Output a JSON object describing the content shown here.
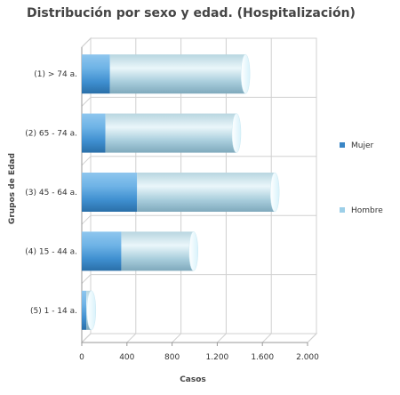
{
  "chart_data": {
    "type": "bar",
    "orientation": "horizontal",
    "stacked": true,
    "style": "3d-cylinder",
    "title": "Distribución por sexo y edad. (Hospitalización)",
    "xlabel": "Casos",
    "ylabel": "Grupos de Edad",
    "xlim": [
      0,
      2000
    ],
    "x_ticks": [
      "0",
      "400",
      "800",
      "1.200",
      "1.600",
      "2.000"
    ],
    "x_tick_values": [
      0,
      400,
      800,
      1200,
      1600,
      2000
    ],
    "categories": [
      "(1) > 74 a.",
      "(2) 65 - 74 a.",
      "(3) 45 - 64 a.",
      "(4) 15 - 44 a.",
      "(5) 1 - 14 a."
    ],
    "series": [
      {
        "name": "Mujer",
        "values": [
          250,
          210,
          490,
          350,
          40
        ],
        "color": "#3a86c6"
      },
      {
        "name": "Hombre",
        "values": [
          1200,
          1160,
          1220,
          640,
          45
        ],
        "color": "#9ccfe8"
      }
    ],
    "grid": true,
    "legend_position": "right"
  }
}
